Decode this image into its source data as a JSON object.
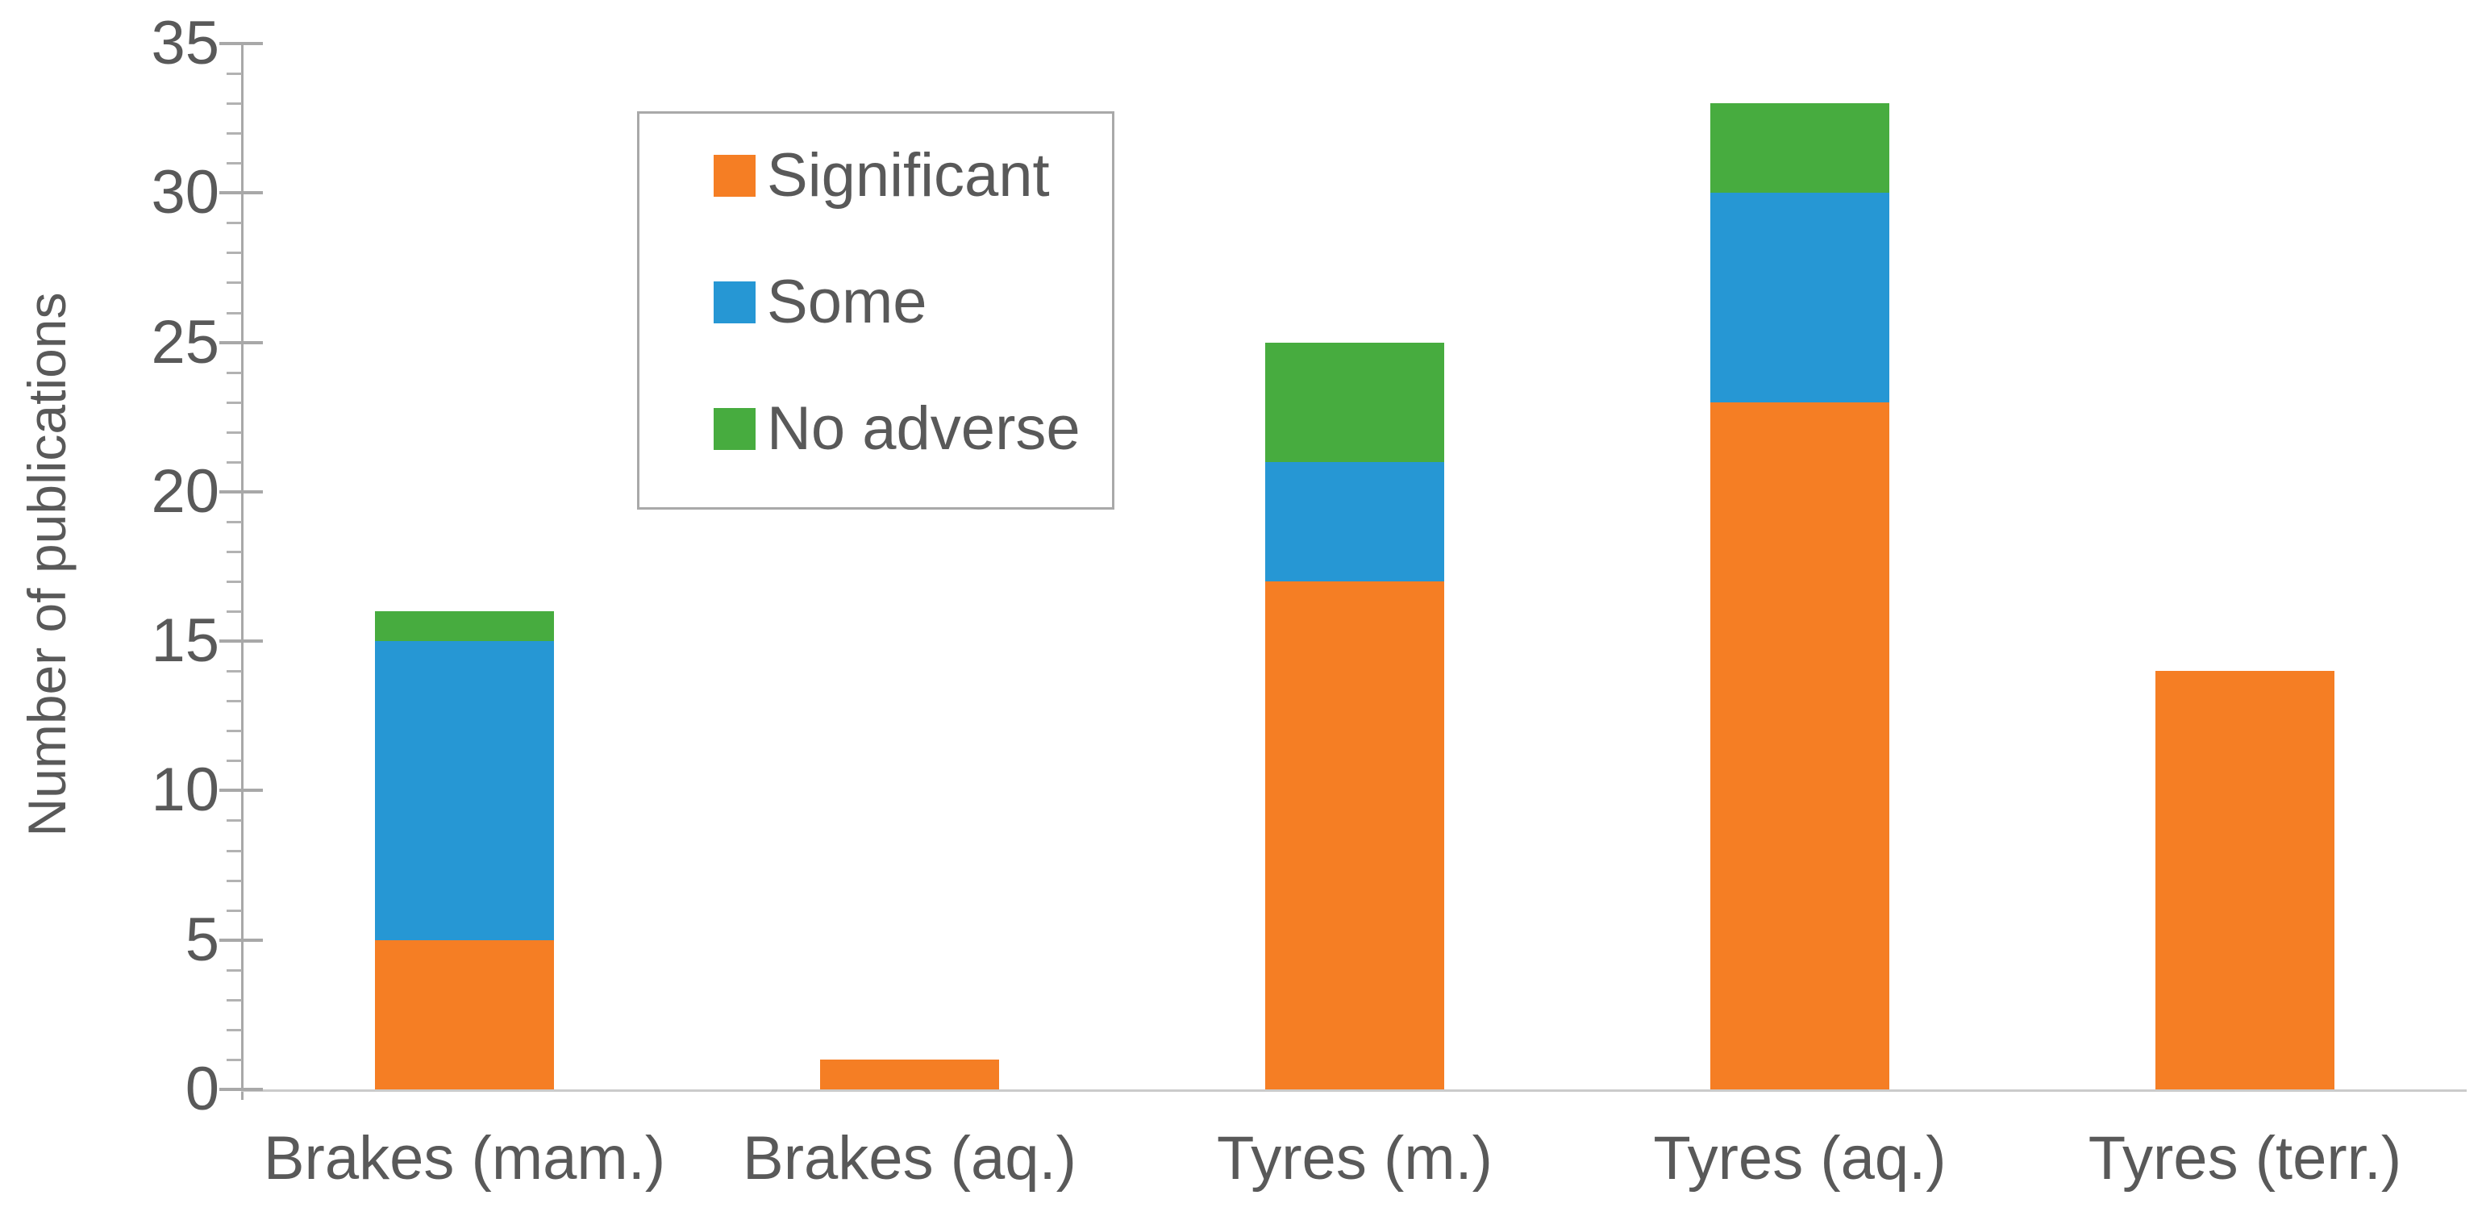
{
  "chart_data": {
    "type": "bar",
    "stacked": true,
    "title": "",
    "ylabel": "Number of publications",
    "xlabel": "",
    "categories": [
      "Brakes (mam.)",
      "Brakes (aq.)",
      "Tyres (m.)",
      "Tyres (aq.)",
      "Tyres (terr.)"
    ],
    "series": [
      {
        "name": "Significant",
        "color": "#F57E24",
        "values": [
          5,
          1,
          17,
          23,
          14
        ]
      },
      {
        "name": "Some",
        "color": "#2697D4",
        "values": [
          10,
          0,
          4,
          7,
          0
        ]
      },
      {
        "name": "No adverse",
        "color": "#47AC3F",
        "values": [
          1,
          0,
          4,
          3,
          0
        ]
      }
    ],
    "totals": [
      16,
      1,
      25,
      33,
      14
    ],
    "ylim": [
      0,
      35
    ],
    "yticks": [
      "0",
      "5",
      "10",
      "15",
      "20",
      "25",
      "30",
      "35"
    ],
    "ytick_interval": 5,
    "minor_tick_interval": 1,
    "grid": false,
    "legend": {
      "position": "upper-left-inside",
      "entries": [
        "Significant",
        "Some",
        "No adverse"
      ]
    }
  }
}
